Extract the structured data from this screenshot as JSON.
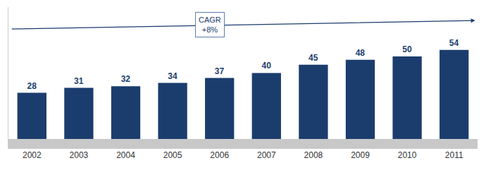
{
  "chart_data": {
    "type": "bar",
    "categories": [
      "2002",
      "2003",
      "2004",
      "2005",
      "2006",
      "2007",
      "2008",
      "2009",
      "2010",
      "2011"
    ],
    "values": [
      28,
      31,
      32,
      34,
      37,
      40,
      45,
      48,
      50,
      54
    ],
    "color": "#1b3d6e",
    "ylim": [
      -6,
      80
    ],
    "tick_labels": "x",
    "data_labels": true,
    "grid": false,
    "annotations": [
      {
        "text": "CAGR\n+8%"
      }
    ]
  }
}
